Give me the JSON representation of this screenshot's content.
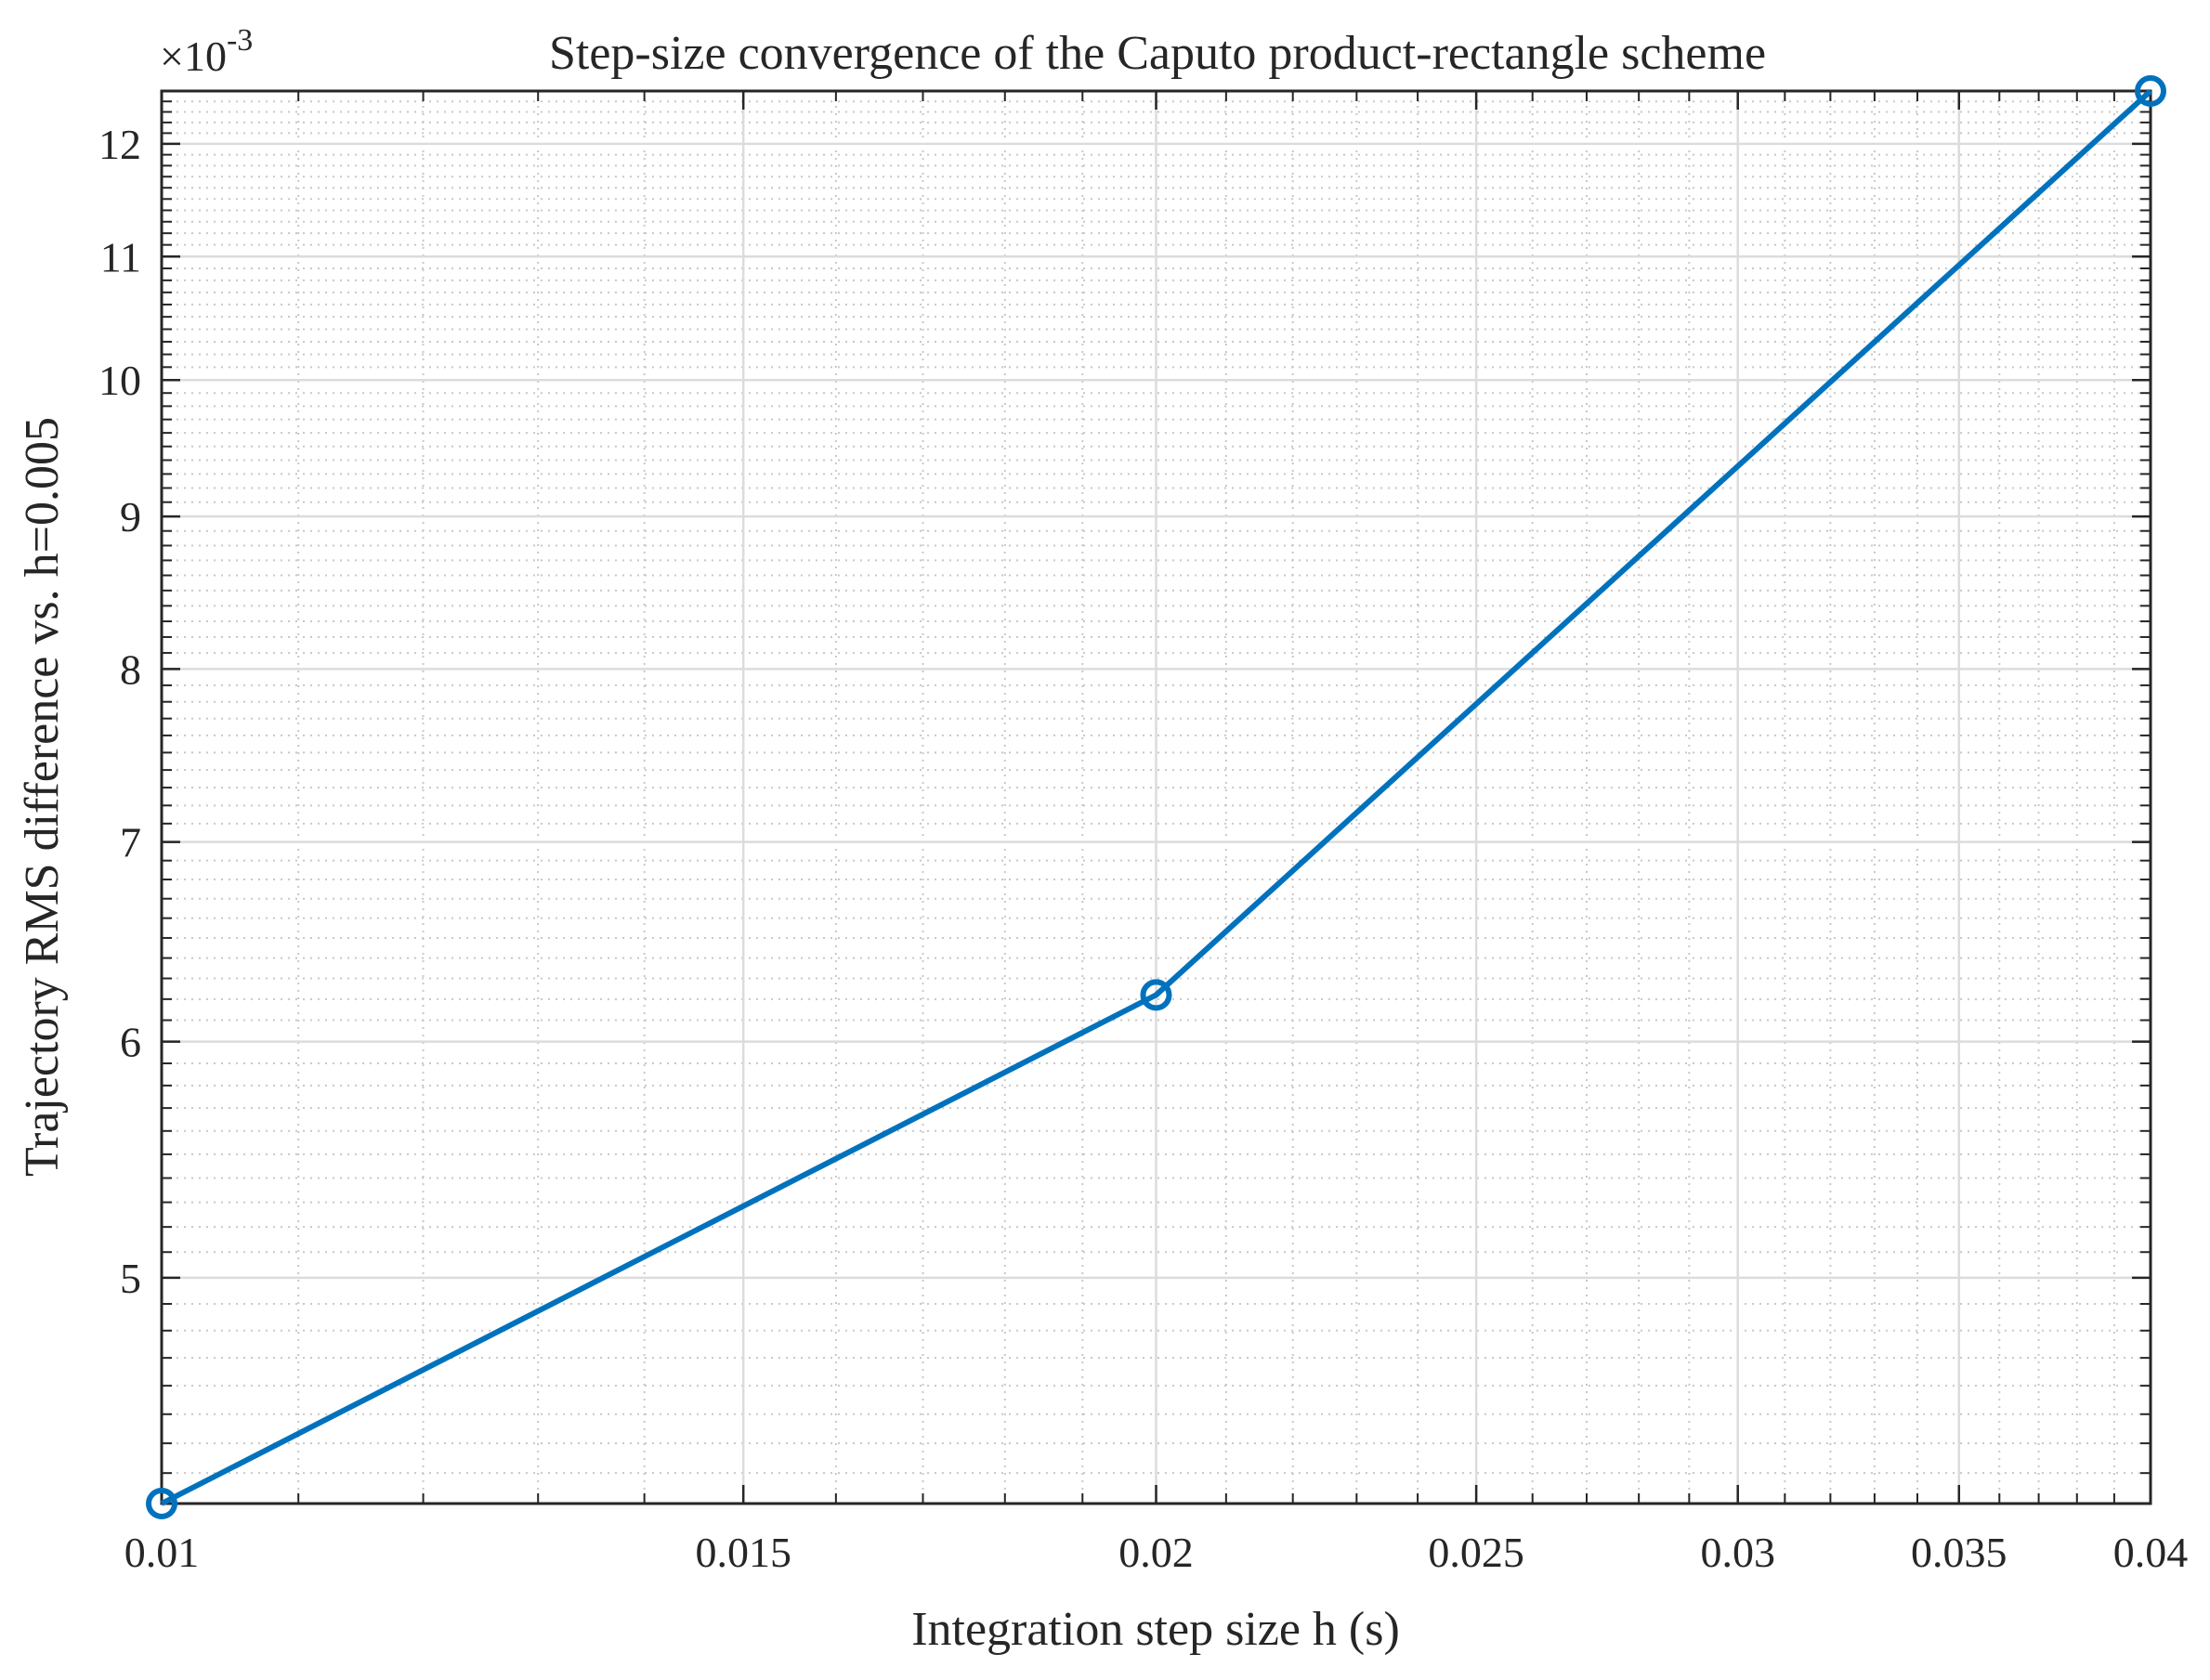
{
  "chart_data": {
    "type": "line",
    "title": "Step-size convergence of the Caputo product-rectangle scheme",
    "xlabel": "Integration step size h (s)",
    "ylabel": "Trajectory RMS difference vs. h=0.005",
    "xscale": "log",
    "yscale": "log",
    "xlim": [
      0.01,
      0.04
    ],
    "ylim": [
      0.0042,
      0.0125
    ],
    "x_ticks": [
      0.01,
      0.015,
      0.02,
      0.025,
      0.03,
      0.035,
      0.04
    ],
    "x_tick_labels": [
      "0.01",
      "0.015",
      "0.02",
      "0.025",
      "0.03",
      "0.035",
      "0.04"
    ],
    "y_ticks": [
      0.005,
      0.006,
      0.007,
      0.008,
      0.009,
      0.01,
      0.011,
      0.012
    ],
    "y_tick_labels": [
      "5",
      "6",
      "7",
      "8",
      "9",
      "10",
      "11",
      "12"
    ],
    "y_exponent_label": "×10",
    "y_exponent_power": "-3",
    "grid": true,
    "minor_grid": true,
    "series": [
      {
        "x": [
          0.01,
          0.02,
          0.04
        ],
        "y": [
          0.0042,
          0.00622,
          0.0125
        ],
        "color": "#0072BD",
        "marker": "circle"
      }
    ]
  }
}
